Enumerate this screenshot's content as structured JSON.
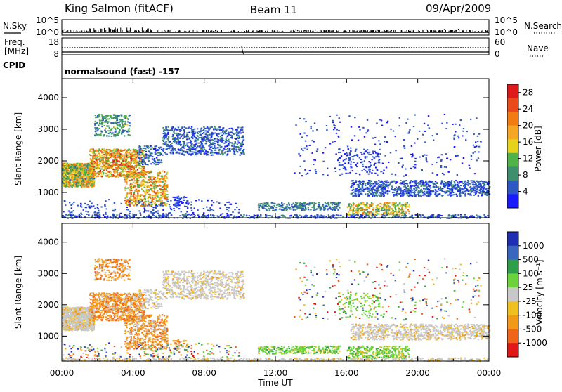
{
  "header": {
    "station": "King Salmon (fitACF)",
    "beam": "Beam 11",
    "date": "09/Apr/2009"
  },
  "strip_panels": {
    "nsky": {
      "left_label": "N.Sky",
      "ticks_left": [
        "10^5",
        "10^0"
      ],
      "ticks_right": [
        "10^5",
        "10^0"
      ],
      "right_label": "N.Search"
    },
    "freq": {
      "left_label_1": "Freq.",
      "left_label_2": "[MHz]",
      "ticks_left": [
        "18",
        "8"
      ],
      "ticks_right": [
        "60",
        "0"
      ],
      "right_label": "Nave"
    },
    "cpid": {
      "left_label": "CPID",
      "text": "normalsound (fast) -157"
    }
  },
  "colors": {
    "power": [
      "#1a1aff",
      "#2d58c4",
      "#3e8f6e",
      "#4fb34a",
      "#e6d21a",
      "#f5a623",
      "#f27b12",
      "#ea4a1a",
      "#e0191a"
    ],
    "velocity": [
      "#1f2fb4",
      "#3a66c0",
      "#2f9e4a",
      "#6bd23a",
      "#c8c8c8",
      "#f0c020",
      "#f29a18",
      "#f0641a",
      "#e01818"
    ]
  },
  "chart_data": [
    {
      "type": "heatmap",
      "name_text": "Power [dB]",
      "ylabel": "Slant Range [km]",
      "ylim": [
        200,
        4600
      ],
      "yticks": [
        "1000",
        "2000",
        "3000",
        "4000"
      ],
      "xlim": [
        0,
        24
      ],
      "colorbar_labels": [
        "4",
        "8",
        "12",
        "16",
        "20",
        "24",
        "28"
      ],
      "colorbar_label_values": [
        4,
        8,
        12,
        16,
        20,
        24,
        28
      ],
      "colorbar_range": [
        0,
        30
      ]
    },
    {
      "type": "heatmap",
      "name_text": "Velocity [m s⁻¹]",
      "ylabel": "Slant Range [km]",
      "ylim": [
        200,
        4600
      ],
      "yticks": [
        "1000",
        "2000",
        "3000",
        "4000"
      ],
      "xlim": [
        0,
        24
      ],
      "xticks": [
        "00:00",
        "04:00",
        "08:00",
        "12:00",
        "16:00",
        "20:00",
        "00:00"
      ],
      "xlabel": "Time UT",
      "colorbar_labels": [
        "1000",
        "500",
        "100",
        "25",
        "-25",
        "-100",
        "-500",
        "-1000"
      ]
    }
  ]
}
